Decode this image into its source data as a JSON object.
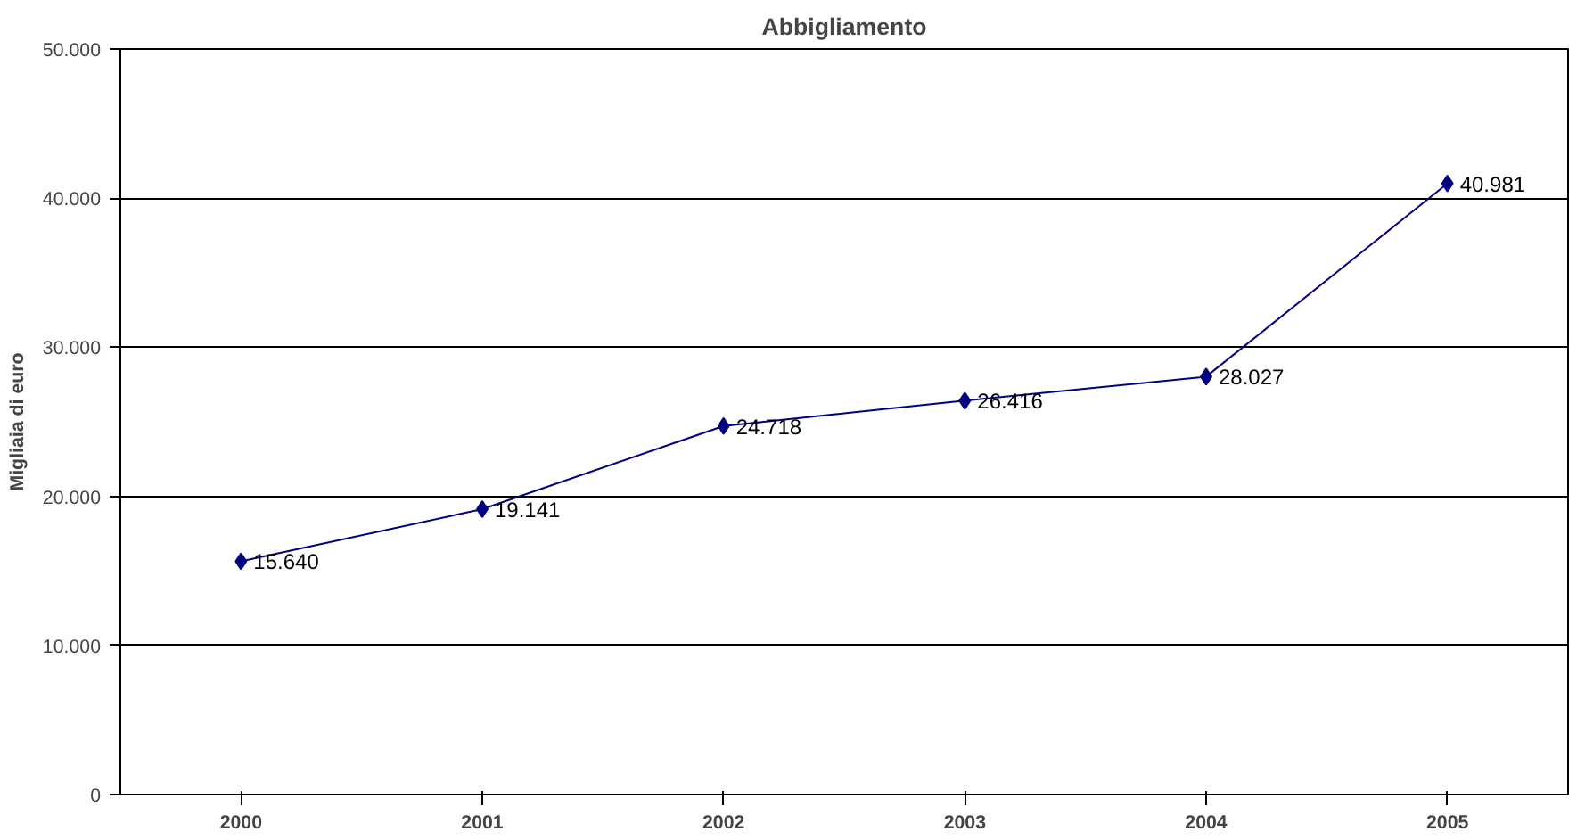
{
  "chart_data": {
    "type": "line",
    "title": "Abbigliamento",
    "ylabel": "Migliaia di euro",
    "categories": [
      "2000",
      "2001",
      "2002",
      "2003",
      "2004",
      "2005"
    ],
    "series": [
      {
        "color": "#000080",
        "values": [
          15640,
          19141,
          24718,
          26416,
          28027,
          40981
        ],
        "value_labels": [
          "15.640",
          "19.141",
          "24.718",
          "26.416",
          "28.027",
          "40.981"
        ]
      }
    ],
    "ylim": [
      0,
      50000
    ],
    "yticks": [
      0,
      {
        "value": 10000,
        "label": "10.000"
      },
      {
        "value": 20000,
        "label": "20.000"
      },
      {
        "value": 30000,
        "label": "30.000"
      },
      {
        "value": 40000,
        "label": "40.000"
      },
      {
        "value": 50000,
        "label": "50.000"
      }
    ],
    "grid": "y",
    "marker": "diamond",
    "line_style": "solid"
  }
}
